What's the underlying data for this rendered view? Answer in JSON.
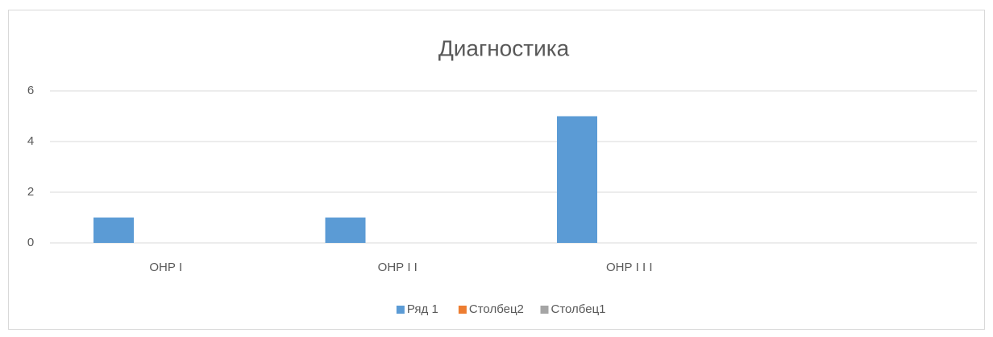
{
  "chart_data": {
    "type": "bar",
    "title": "Диагностика",
    "categories": [
      "ОНР I",
      "ОНР I I",
      "ОНР I I I",
      null
    ],
    "series": [
      {
        "name": "Ряд 1",
        "color": "#5b9bd5",
        "values": [
          1,
          1,
          5,
          null
        ]
      },
      {
        "name": "Столбец2",
        "color": "#ed7d31",
        "values": [
          null,
          null,
          null,
          null
        ]
      },
      {
        "name": "Столбец1",
        "color": "#a5a5a5",
        "values": [
          null,
          null,
          null,
          null
        ]
      }
    ],
    "ylim": [
      0,
      6
    ],
    "yticks": [
      0,
      2,
      4,
      6
    ],
    "grid": true,
    "legend": "bottom"
  }
}
